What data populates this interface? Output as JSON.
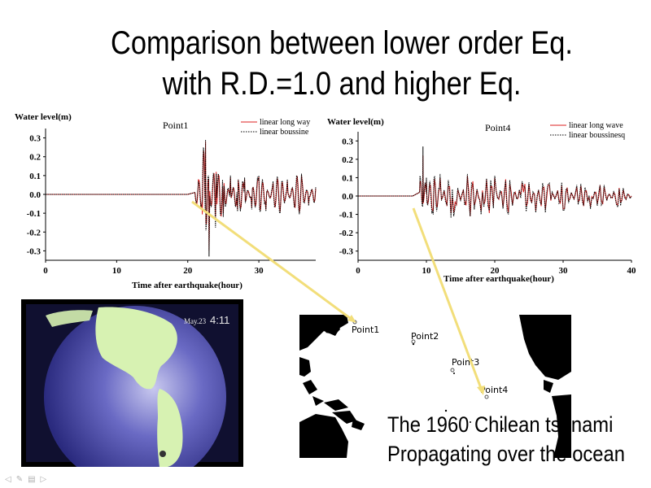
{
  "slide": {
    "title_line1": "Comparison between lower order Eq.",
    "title_line2": "with R.D.=1.0 and higher Eq."
  },
  "colors": {
    "linear_long_wave": "#dd2222",
    "linear_boussinesq": "#000000",
    "arrow": "#f2de7a",
    "globe_ocean": "#3b3b9a",
    "globe_land": "#d7f2b2"
  },
  "globe_video": {
    "timestamp_date": "May.23",
    "timestamp_time": "4:11"
  },
  "map": {
    "points": [
      "Point1",
      "Point2",
      "Point3",
      "Point4"
    ]
  },
  "caption": {
    "line1": "The 1960 Chilean tsunami",
    "line2": "Propagating over the ocean"
  },
  "nav_icons": [
    "prev-icon",
    "pen-icon",
    "menu-icon",
    "next-icon"
  ],
  "chart_data": [
    {
      "type": "line",
      "title": "Point1",
      "ylabel": "Water level(m)",
      "xlabel": "Time after earthquake(hour)",
      "xlim": [
        0,
        38
      ],
      "ylim": [
        -0.35,
        0.35
      ],
      "xticks": [
        "0",
        "10",
        "20",
        "30"
      ],
      "yticks": [
        "0.3",
        "0.2",
        "0.1",
        "0.0",
        "-0.1",
        "-0.2",
        "-0.3"
      ],
      "legend": [
        "linear long way",
        "linear boussine"
      ],
      "arrival_hour": 21,
      "series": [
        {
          "name": "linear long wave",
          "x": [
            0,
            20,
            21,
            21.5,
            22,
            22.5,
            23,
            24,
            25,
            26,
            27,
            28,
            29,
            30,
            31,
            32,
            33,
            34,
            35,
            36,
            37,
            38
          ],
          "values": [
            0.0,
            0.0,
            0.01,
            0.08,
            -0.04,
            0.28,
            -0.3,
            0.12,
            -0.1,
            0.09,
            -0.08,
            0.08,
            -0.07,
            0.09,
            -0.08,
            0.06,
            -0.09,
            0.07,
            -0.06,
            0.1,
            -0.05,
            0.03
          ]
        },
        {
          "name": "linear boussinesq",
          "x": [
            0,
            20,
            21,
            21.5,
            22,
            22.5,
            23,
            24,
            25,
            26,
            27,
            28,
            29,
            30,
            31,
            32,
            33,
            34,
            35,
            36,
            37,
            38
          ],
          "values": [
            0.0,
            0.0,
            0.01,
            0.07,
            -0.05,
            0.29,
            -0.33,
            0.11,
            -0.12,
            0.1,
            -0.09,
            0.09,
            -0.08,
            0.1,
            -0.09,
            0.07,
            -0.1,
            0.08,
            -0.07,
            0.11,
            -0.06,
            0.04
          ]
        }
      ]
    },
    {
      "type": "line",
      "title": "Point4",
      "ylabel": "Water level(m)",
      "xlabel": "Time after earthquake(hour)",
      "xlim": [
        0,
        40
      ],
      "ylim": [
        -0.35,
        0.35
      ],
      "xticks": [
        "0",
        "10",
        "20",
        "30",
        "40"
      ],
      "yticks": [
        "0.3",
        "0.2",
        "0.1",
        "0.0",
        "-0.1",
        "-0.2",
        "-0.3"
      ],
      "legend": [
        "linear long wave",
        "linear boussinesq"
      ],
      "arrival_hour": 9,
      "series": [
        {
          "name": "linear long wave",
          "x": [
            0,
            8,
            9,
            9.5,
            10,
            11,
            12,
            14,
            16,
            18,
            20,
            22,
            24,
            26,
            28,
            30,
            32,
            34,
            36,
            38,
            40
          ],
          "values": [
            0.0,
            0.0,
            0.02,
            0.22,
            0.08,
            -0.08,
            0.1,
            -0.09,
            0.11,
            -0.08,
            0.1,
            -0.09,
            0.07,
            -0.08,
            0.06,
            -0.07,
            0.05,
            -0.06,
            0.05,
            -0.05,
            0.0
          ]
        },
        {
          "name": "linear boussinesq",
          "x": [
            0,
            8,
            9,
            9.5,
            10,
            11,
            12,
            14,
            16,
            18,
            20,
            22,
            24,
            26,
            28,
            30,
            32,
            34,
            36,
            38,
            40
          ],
          "values": [
            0.0,
            0.0,
            0.02,
            0.27,
            0.1,
            -0.1,
            0.12,
            -0.11,
            0.12,
            -0.1,
            0.11,
            -0.1,
            0.08,
            -0.09,
            0.07,
            -0.08,
            0.06,
            -0.07,
            0.06,
            -0.06,
            0.0
          ]
        }
      ]
    }
  ]
}
